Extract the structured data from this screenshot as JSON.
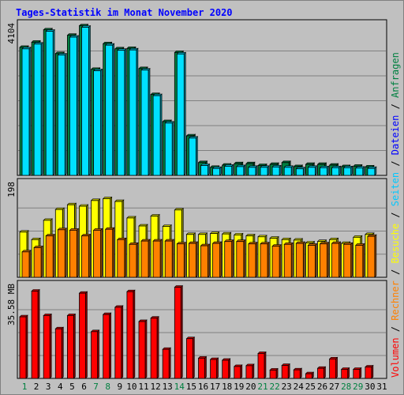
{
  "chart_data": {
    "type": "bar",
    "title": "Tages-Statistik im Monat November 2020",
    "categories": [
      "1",
      "2",
      "3",
      "4",
      "5",
      "6",
      "7",
      "8",
      "9",
      "10",
      "11",
      "12",
      "13",
      "14",
      "15",
      "16",
      "17",
      "18",
      "19",
      "20",
      "21",
      "22",
      "23",
      "24",
      "25",
      "26",
      "27",
      "28",
      "29",
      "30",
      "31"
    ],
    "weekend_days": [
      "1",
      "7",
      "8",
      "14",
      "21",
      "22",
      "28",
      "29"
    ],
    "legend": [
      "Anfragen",
      "/",
      "Dateien",
      "/",
      "Seiten",
      "/",
      "Besuche",
      "/",
      "Rechner",
      "/",
      "Volumen"
    ],
    "panels": [
      {
        "axis_label": "4104",
        "ymax": 4104,
        "series": [
          {
            "name": "Anfragen",
            "color": "#008040",
            "values": [
              3500,
              3640,
              3980,
              3330,
              3830,
              4090,
              2900,
              3600,
              3460,
              3470,
              2920,
              2210,
              1470,
              3360,
              1080,
              350,
              220,
              280,
              320,
              320,
              270,
              300,
              350,
              240,
              300,
              300,
              280,
              240,
              250,
              230,
              null
            ]
          },
          {
            "name": "Dateien",
            "color": "#00e0ff",
            "values": [
              3460,
              3590,
              3940,
              3290,
              3780,
              4050,
              2860,
              3560,
              3420,
              3430,
              2880,
              2180,
              1430,
              3320,
              1020,
              270,
              190,
              250,
              240,
              220,
              220,
              230,
              220,
              180,
              220,
              210,
              210,
              210,
              200,
              190,
              null
            ]
          }
        ]
      },
      {
        "axis_label": "198",
        "ymax": 198,
        "series": [
          {
            "name": "Seiten",
            "color": "#ffff00",
            "values": [
              96,
              80,
              121,
              144,
              154,
              151,
              163,
              167,
              161,
              126,
              109,
              130,
              108,
              143,
              91,
              91,
              93,
              92,
              90,
              88,
              86,
              83,
              80,
              79,
              73,
              76,
              80,
              72,
              85,
              91,
              null
            ]
          },
          {
            "name": "Besuche",
            "color": "#ff8000",
            "values": [
              54,
              63,
              88,
              101,
              100,
              88,
              100,
              102,
              80,
              70,
              77,
              77,
              77,
              71,
              72,
              67,
              72,
              76,
              76,
              71,
              71,
              66,
              70,
              72,
              68,
              71,
              72,
              70,
              68,
              87,
              null
            ]
          }
        ]
      },
      {
        "axis_label": "35.58 MB",
        "ymax": 35.58,
        "series": [
          {
            "name": "Volumen",
            "color": "#ff0000",
            "values": [
              23.7,
              33.6,
              24.2,
              19.1,
              24.2,
              32.8,
              18.0,
              24.6,
              27.4,
              33.4,
              21.9,
              23.2,
              11.2,
              35.1,
              15.3,
              7.8,
              7.3,
              7.0,
              4.6,
              4.9,
              9.6,
              3.2,
              5.0,
              3.3,
              1.8,
              3.9,
              7.5,
              3.5,
              3.5,
              4.4,
              null
            ]
          }
        ]
      }
    ]
  }
}
